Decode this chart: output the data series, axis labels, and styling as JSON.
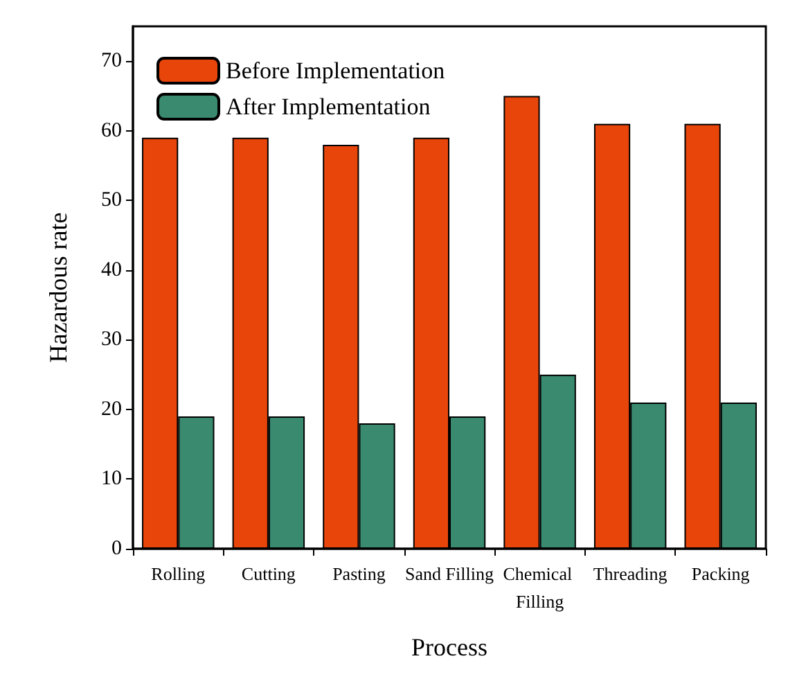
{
  "chart_data": {
    "type": "bar",
    "xlabel": "Process",
    "ylabel": "Hazardous rate",
    "categories": [
      "Rolling",
      "Cutting",
      "Pasting",
      "Sand Filling",
      "Chemical Filling",
      "Threading",
      "Packing"
    ],
    "series": [
      {
        "name": "Before Implementation",
        "color": "#e8450a",
        "values": [
          59,
          59,
          58,
          59,
          65,
          61,
          61
        ]
      },
      {
        "name": "After Implementation",
        "color": "#3a8a70",
        "values": [
          19,
          19,
          18,
          19,
          25,
          21,
          21
        ]
      }
    ],
    "ylim": [
      0,
      75
    ],
    "yticks": [
      0,
      10,
      20,
      30,
      40,
      50,
      60,
      70
    ],
    "grid": false,
    "legend": "top left"
  }
}
